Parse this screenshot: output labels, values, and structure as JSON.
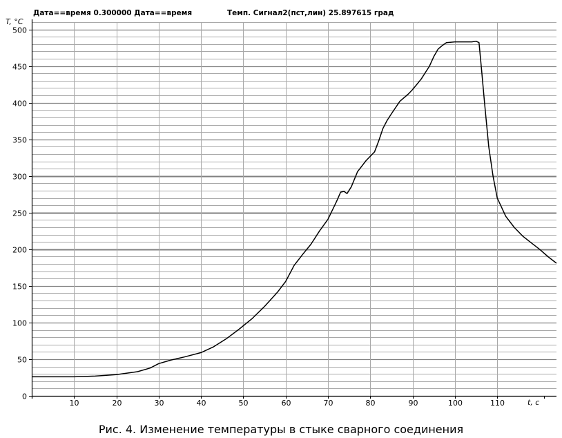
{
  "header": {
    "left_text": "Дата==время 0.300000 Дата==время",
    "right_text": "Темп. Сигнал2(пст,лин) 25.897615 град"
  },
  "caption": "Рис. 4. Изменение температуры в стыке сварного соединения",
  "chart_data": {
    "type": "line",
    "title": "",
    "xlabel": "t, с",
    "ylabel": "T, °C",
    "xlim": [
      0,
      124
    ],
    "ylim": [
      0,
      510
    ],
    "x_ticks": [
      10,
      20,
      30,
      40,
      50,
      60,
      70,
      80,
      90,
      100,
      110
    ],
    "y_ticks": [
      0,
      50,
      100,
      150,
      200,
      250,
      300,
      350,
      400,
      450,
      500
    ],
    "grid": true,
    "minor_y_step": 10,
    "colors": {
      "line": "#000000",
      "grid_major": "#808080",
      "grid_minor": "#a8a8a8",
      "axis": "#000000"
    },
    "series": [
      {
        "values_x": [
          0,
          5,
          10,
          15,
          20,
          25,
          28,
          30,
          33,
          36,
          40,
          43,
          46,
          49,
          52,
          55,
          58,
          60,
          62,
          64,
          66,
          68,
          70,
          72,
          73,
          73.8,
          74.5,
          75.5,
          77,
          79,
          81,
          82,
          83,
          84,
          85,
          87,
          89,
          90,
          92,
          94,
          95,
          96,
          97,
          98,
          100,
          102,
          104,
          105,
          105.7,
          106.3,
          107,
          108,
          109,
          110,
          112,
          114,
          116,
          118,
          120,
          122,
          124
        ],
        "values_y": [
          26,
          26,
          26,
          27,
          29,
          33,
          38,
          44,
          49,
          53,
          59,
          67,
          78,
          91,
          105,
          122,
          141,
          156,
          178,
          193,
          207,
          225,
          241,
          265,
          278,
          279,
          276,
          285,
          306,
          321,
          333,
          348,
          365,
          376,
          385,
          402,
          412,
          418,
          432,
          450,
          463,
          473,
          478,
          482,
          483,
          483,
          483,
          484,
          482,
          445,
          400,
          340,
          300,
          270,
          245,
          230,
          218,
          209,
          200,
          190,
          181
        ]
      }
    ]
  }
}
